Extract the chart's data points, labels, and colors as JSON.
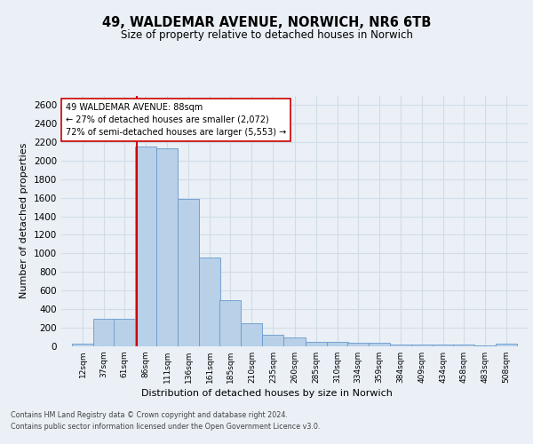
{
  "title_line1": "49, WALDEMAR AVENUE, NORWICH, NR6 6TB",
  "title_line2": "Size of property relative to detached houses in Norwich",
  "xlabel": "Distribution of detached houses by size in Norwich",
  "ylabel": "Number of detached properties",
  "footer_line1": "Contains HM Land Registry data © Crown copyright and database right 2024.",
  "footer_line2": "Contains public sector information licensed under the Open Government Licence v3.0.",
  "property_label": "49 WALDEMAR AVENUE: 88sqm",
  "annotation_line1": "← 27% of detached houses are smaller (2,072)",
  "annotation_line2": "72% of semi-detached houses are larger (5,553) →",
  "bin_labels": [
    "12sqm",
    "37sqm",
    "61sqm",
    "86sqm",
    "111sqm",
    "136sqm",
    "161sqm",
    "185sqm",
    "210sqm",
    "235sqm",
    "260sqm",
    "285sqm",
    "310sqm",
    "334sqm",
    "359sqm",
    "384sqm",
    "409sqm",
    "434sqm",
    "458sqm",
    "483sqm",
    "508sqm"
  ],
  "bin_left_edges": [
    12,
    37,
    61,
    86,
    111,
    136,
    161,
    185,
    210,
    235,
    260,
    285,
    310,
    334,
    359,
    384,
    409,
    434,
    458,
    483,
    508
  ],
  "bin_width": 25,
  "bar_heights": [
    25,
    300,
    300,
    2150,
    2130,
    1590,
    960,
    500,
    250,
    120,
    100,
    50,
    50,
    35,
    35,
    20,
    20,
    20,
    20,
    5,
    25
  ],
  "bar_color": "#b8d0e8",
  "bar_edge_color": "#6699cc",
  "grid_color": "#d0dde8",
  "vline_color": "#cc0000",
  "vline_x": 88,
  "annotation_box_color": "#cc0000",
  "ylim": [
    0,
    2700
  ],
  "yticks": [
    0,
    200,
    400,
    600,
    800,
    1000,
    1200,
    1400,
    1600,
    1800,
    2000,
    2200,
    2400,
    2600
  ],
  "bg_color": "#eaf0f6"
}
